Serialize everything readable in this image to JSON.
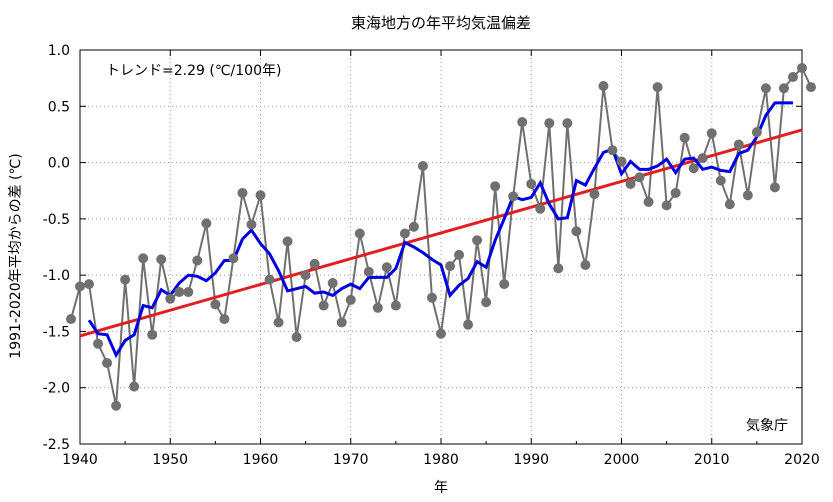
{
  "chart_data": {
    "type": "line",
    "title": "東海地方の年平均気温偏差",
    "xlabel": "年",
    "ylabel": "1991-2020年平均からの差 (℃)",
    "xlim": [
      1940,
      2020
    ],
    "ylim": [
      -2.5,
      1.0
    ],
    "xticks": [
      1940,
      1950,
      1960,
      1970,
      1980,
      1990,
      2000,
      2010,
      2020
    ],
    "yticks": [
      1.0,
      0.5,
      0.0,
      -0.5,
      -1.0,
      -1.5,
      -2.0,
      -2.5
    ],
    "ytick_labels": [
      "1.0",
      "0.5",
      "0.0",
      "-0.5",
      "-1.0",
      "-1.5",
      "-2.0",
      "-2.5"
    ],
    "grid": true,
    "annotations": {
      "trend": "トレンド=2.29 (℃/100年)",
      "source": "気象庁"
    },
    "colors": {
      "annual": "#707070",
      "moving_average": "#0000e0",
      "trend": "#e02020",
      "grid": "#999999"
    },
    "series": [
      {
        "kind": "annual",
        "x": [
          1939,
          1940,
          1941,
          1942,
          1943,
          1944,
          1945,
          1946,
          1947,
          1948,
          1949,
          1950,
          1951,
          1952,
          1953,
          1954,
          1955,
          1956,
          1957,
          1958,
          1959,
          1960,
          1961,
          1962,
          1963,
          1964,
          1965,
          1966,
          1967,
          1968,
          1969,
          1970,
          1971,
          1972,
          1973,
          1974,
          1975,
          1976,
          1977,
          1978,
          1979,
          1980,
          1981,
          1982,
          1983,
          1984,
          1985,
          1986,
          1987,
          1988,
          1989,
          1990,
          1991,
          1992,
          1993,
          1994,
          1995,
          1996,
          1997,
          1998,
          1999,
          2000,
          2001,
          2002,
          2003,
          2004,
          2005,
          2006,
          2007,
          2008,
          2009,
          2010,
          2011,
          2012,
          2013,
          2014,
          2015,
          2016,
          2017,
          2018,
          2019,
          2020,
          2021
        ],
        "values": [
          -1.39,
          -1.1,
          -1.08,
          -1.61,
          -1.78,
          -2.16,
          -1.04,
          -1.99,
          -0.85,
          -1.53,
          -0.86,
          -1.21,
          -1.15,
          -1.15,
          -0.87,
          -0.54,
          -1.26,
          -1.39,
          -0.85,
          -0.27,
          -0.55,
          -0.29,
          -1.04,
          -1.42,
          -0.7,
          -1.55,
          -1.0,
          -0.9,
          -1.27,
          -1.07,
          -1.42,
          -1.22,
          -0.63,
          -0.97,
          -1.29,
          -0.93,
          -1.27,
          -0.63,
          -0.57,
          -0.03,
          -1.2,
          -1.52,
          -0.92,
          -0.82,
          -1.44,
          -0.69,
          -1.24,
          -0.21,
          -1.08,
          -0.3,
          0.36,
          -0.19,
          -0.41,
          0.35,
          -0.94,
          0.35,
          -0.61,
          -0.91,
          -0.28,
          0.68,
          0.11,
          0.01,
          -0.19,
          -0.13,
          -0.35,
          0.67,
          -0.38,
          -0.27,
          0.22,
          -0.05,
          0.04,
          0.26,
          -0.16,
          -0.37,
          0.16,
          -0.29,
          0.27,
          0.66,
          -0.22,
          0.66,
          0.76,
          0.84,
          0.67
        ]
      },
      {
        "kind": "moving_average",
        "x": [
          1941,
          1942,
          1943,
          1944,
          1945,
          1946,
          1947,
          1948,
          1949,
          1950,
          1951,
          1952,
          1953,
          1954,
          1955,
          1956,
          1957,
          1958,
          1959,
          1960,
          1961,
          1962,
          1963,
          1964,
          1965,
          1966,
          1967,
          1968,
          1969,
          1970,
          1971,
          1972,
          1973,
          1974,
          1975,
          1976,
          1977,
          1978,
          1979,
          1980,
          1981,
          1982,
          1983,
          1984,
          1985,
          1986,
          1987,
          1988,
          1989,
          1990,
          1991,
          1992,
          1993,
          1994,
          1995,
          1996,
          1997,
          1998,
          1999,
          2000,
          2001,
          2002,
          2003,
          2004,
          2005,
          2006,
          2007,
          2008,
          2009,
          2010,
          2011,
          2012,
          2013,
          2014,
          2015,
          2016,
          2017,
          2018,
          2019
        ],
        "values": [
          -1.4,
          -1.52,
          -1.53,
          -1.71,
          -1.58,
          -1.53,
          -1.27,
          -1.29,
          -1.13,
          -1.18,
          -1.07,
          -1.0,
          -1.01,
          -1.05,
          -0.98,
          -0.87,
          -0.87,
          -0.68,
          -0.6,
          -0.72,
          -0.81,
          -0.96,
          -1.14,
          -1.12,
          -1.1,
          -1.16,
          -1.15,
          -1.18,
          -1.12,
          -1.08,
          -1.12,
          -1.02,
          -1.02,
          -1.02,
          -0.94,
          -0.71,
          -0.75,
          -0.8,
          -0.86,
          -0.91,
          -1.18,
          -1.09,
          -1.03,
          -0.88,
          -0.93,
          -0.69,
          -0.5,
          -0.3,
          -0.33,
          -0.31,
          -0.18,
          -0.37,
          -0.5,
          -0.49,
          -0.16,
          -0.2,
          -0.05,
          0.09,
          0.12,
          -0.1,
          0.01,
          -0.06,
          -0.06,
          -0.03,
          0.03,
          -0.09,
          0.03,
          0.04,
          -0.06,
          -0.04,
          -0.07,
          -0.08,
          0.08,
          0.11,
          0.23,
          0.42,
          0.53,
          0.53,
          0.53
        ]
      },
      {
        "kind": "trend",
        "x": [
          1940,
          2020
        ],
        "values": [
          -1.54,
          0.29
        ]
      }
    ]
  }
}
